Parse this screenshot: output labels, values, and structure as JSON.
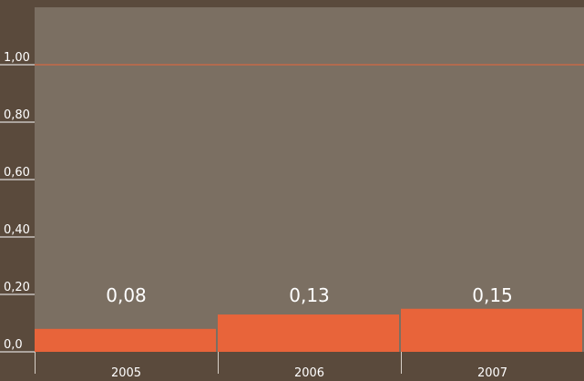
{
  "chart_data": {
    "type": "bar",
    "categories": [
      "2005",
      "2006",
      "2007"
    ],
    "values": [
      0.08,
      0.13,
      0.15
    ],
    "value_labels": [
      "0,08",
      "0,13",
      "0,15"
    ],
    "color": "#e8643a",
    "ylim": [
      0,
      1.2
    ],
    "yticks": [
      {
        "value": 0,
        "label": "0,0"
      },
      {
        "value": 0.2,
        "label": "0,20"
      },
      {
        "value": 0.4,
        "label": "0,40"
      },
      {
        "value": 0.6,
        "label": "0,60"
      },
      {
        "value": 0.8,
        "label": "0,80"
      },
      {
        "value": 1,
        "label": "1,00"
      }
    ],
    "reference_line": {
      "value": 1,
      "color": "#e8643a"
    }
  }
}
